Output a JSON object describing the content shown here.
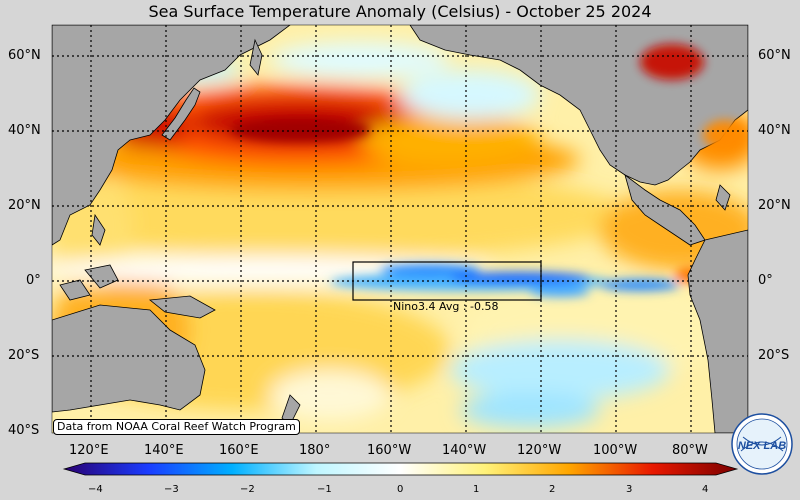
{
  "title": "Sea Surface Temperature Anomaly (Celsius) - October 25 2024",
  "lat_labels": [
    "60°N",
    "40°N",
    "20°N",
    "0°",
    "20°S",
    "40°S"
  ],
  "lon_labels": [
    "120°E",
    "140°E",
    "160°E",
    "180°",
    "160°W",
    "140°W",
    "120°W",
    "100°W",
    "80°W"
  ],
  "nino_box": {
    "label": "Nino3.4 Avg : -0.58"
  },
  "credit": "Data from NOAA Coral Reef Watch Program",
  "colorbar": {
    "ticks": [
      "−4",
      "−3",
      "−2",
      "−1",
      "0",
      "1",
      "2",
      "3",
      "4"
    ],
    "colors": [
      "#2a0070",
      "#1a3cff",
      "#00b0ff",
      "#bff6ff",
      "#ffffff",
      "#fff27a",
      "#ffa600",
      "#e81800",
      "#7a0000"
    ]
  },
  "logo": {
    "text": "NEX LAB"
  },
  "colors": {
    "land": "#a6a6a6",
    "ocean_base": "#fff6c8",
    "warm_strong": "#c40000",
    "warm": "#ff8a00",
    "cool": "#22a8ff",
    "cool_light": "#c6f4ff"
  }
}
